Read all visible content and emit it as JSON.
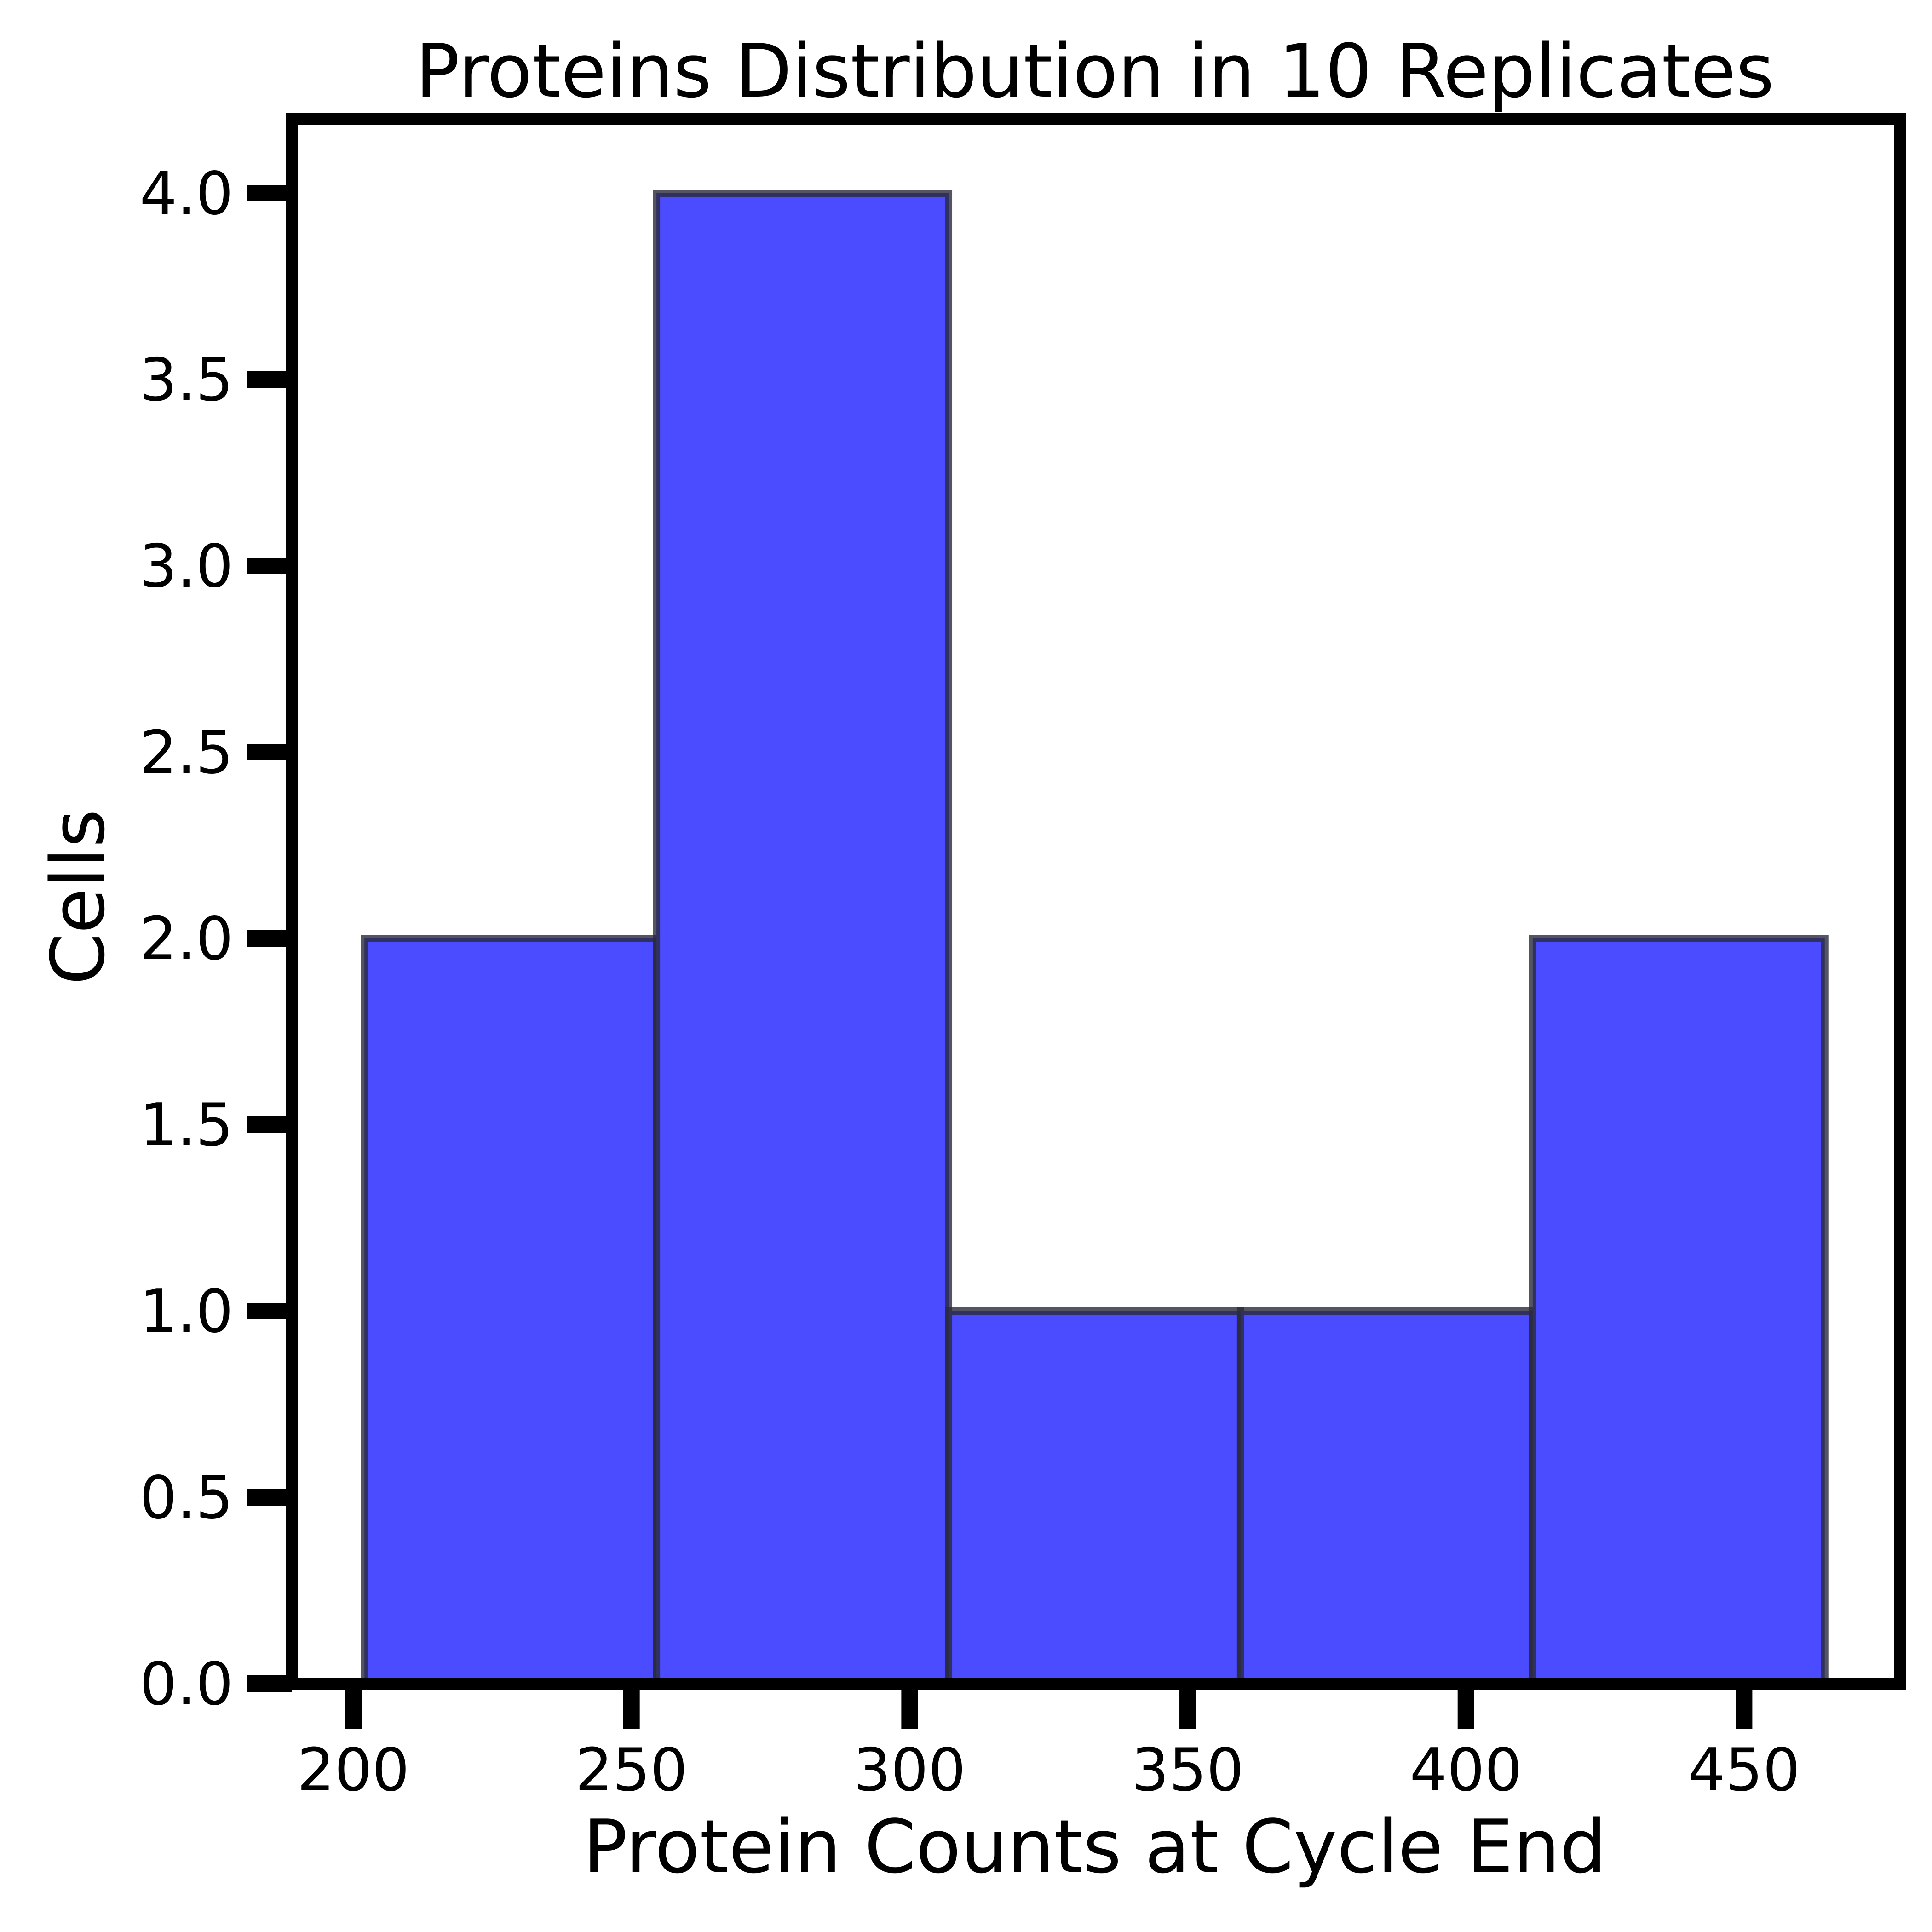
{
  "chart_data": {
    "type": "bar",
    "title": "Proteins Distribution in 10 Replicates",
    "xlabel": "Protein Counts at Cycle End",
    "ylabel": "Cells",
    "bin_edges": [
      202,
      254.5,
      307,
      359.5,
      412,
      464.5
    ],
    "values": [
      2,
      4,
      1,
      1,
      2
    ],
    "xlim": [
      189,
      478
    ],
    "ylim": [
      0,
      4.2
    ],
    "xticks": [
      200,
      250,
      300,
      350,
      400,
      450
    ],
    "xtick_labels": [
      "200",
      "250",
      "300",
      "350",
      "400",
      "450"
    ],
    "yticks": [
      0,
      0.5,
      1,
      1.5,
      2,
      2.5,
      3,
      3.5,
      4
    ],
    "ytick_labels": [
      "0.0",
      "0.5",
      "1.0",
      "1.5",
      "2.0",
      "2.5",
      "3.0",
      "3.5",
      "4.0"
    ],
    "grid": false,
    "legend": "none",
    "bar_color": "#4b4bff",
    "edge_color": "#2b2b3a"
  }
}
